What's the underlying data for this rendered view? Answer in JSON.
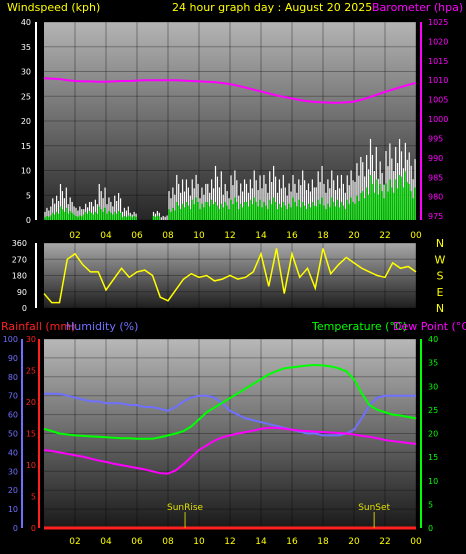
{
  "top": {
    "windspeed_label": "Windspeed (kph)",
    "title": "24 hour graph day : August 20 2025",
    "barometer_label": "Barometer (hpa)"
  },
  "bottom": {
    "rainfall_label": "Rainfall (mm)",
    "humidity_label": "Humidity (%)",
    "temperature_label": "Temperature (°C)",
    "dewpoint_label": "Dew Point (°C)",
    "sunrise_label": "SunRise",
    "sunset_label": "SunSet"
  },
  "colors": {
    "wind_gust": "#ffffff",
    "wind_avg": "#00ff00",
    "barometer": "#ff00ff",
    "direction": "#ffff00",
    "rain": "#ff2020",
    "humidity": "#7070ff",
    "temperature": "#00ff00",
    "dewpoint": "#ff00ff",
    "sun": "#c8c800"
  },
  "chart_data": [
    {
      "type": "area",
      "name": "wind-baro",
      "hour_ticks": [
        "02",
        "04",
        "06",
        "08",
        "10",
        "12",
        "14",
        "16",
        "18",
        "20",
        "22",
        "00"
      ],
      "x": [
        0,
        0.5,
        1,
        1.5,
        2,
        2.5,
        3,
        3.5,
        4,
        4.5,
        5,
        5.5,
        6,
        6.5,
        7,
        7.5,
        8,
        8.5,
        9,
        9.5,
        10,
        10.5,
        11,
        11.5,
        12,
        12.5,
        13,
        13.5,
        14,
        14.5,
        15,
        15.5,
        16,
        16.5,
        17,
        17.5,
        18,
        18.5,
        19,
        19.5,
        20,
        20.5,
        21,
        21.5,
        22,
        22.5,
        23,
        23.5,
        24
      ],
      "left_axis": {
        "label": "Windspeed (kph)",
        "ylim": [
          0,
          40
        ],
        "ticks": [
          0,
          5,
          10,
          15,
          20,
          25,
          30,
          35,
          40
        ]
      },
      "right_axis": {
        "label": "Barometer (hpa)",
        "ylim": [
          974,
          1025
        ],
        "ticks": [
          975,
          980,
          985,
          990,
          995,
          1000,
          1005,
          1010,
          1015,
          1020,
          1025
        ]
      },
      "series": [
        {
          "values": [
            3,
            6,
            8,
            5,
            3,
            4,
            5,
            8,
            5,
            6,
            3,
            2,
            0,
            0,
            2,
            1,
            8,
            10,
            9,
            10,
            8,
            10,
            12,
            8,
            11,
            9,
            10,
            11,
            10,
            12,
            10,
            9,
            10,
            11,
            9,
            12,
            10,
            11,
            10,
            11,
            14,
            16,
            18,
            13,
            17,
            18,
            19,
            15,
            10
          ]
        },
        {
          "values": [
            1,
            2,
            3,
            2,
            1,
            2,
            2,
            3,
            2,
            2,
            1,
            1,
            0,
            0,
            1,
            0,
            3,
            4,
            4,
            5,
            4,
            5,
            4,
            4,
            5,
            4,
            5,
            5,
            4,
            5,
            4,
            4,
            5,
            4,
            4,
            5,
            4,
            5,
            4,
            5,
            6,
            8,
            10,
            8,
            9,
            10,
            12,
            8,
            5
          ]
        },
        {
          "values": [
            1010.5,
            1010.4,
            1010.3,
            1010.0,
            1009.8,
            1009.7,
            1009.7,
            1009.6,
            1009.6,
            1009.7,
            1009.8,
            1009.8,
            1009.9,
            1010.0,
            1010.0,
            1010.0,
            1010.0,
            1010.0,
            1009.9,
            1009.8,
            1009.7,
            1009.6,
            1009.5,
            1009.3,
            1009.0,
            1008.6,
            1008.1,
            1007.6,
            1007.1,
            1006.6,
            1006.1,
            1005.7,
            1005.3,
            1004.9,
            1004.6,
            1004.4,
            1004.3,
            1004.2,
            1004.2,
            1004.3,
            1004.5,
            1005.0,
            1005.6,
            1006.3,
            1007.0,
            1007.6,
            1008.2,
            1008.8,
            1009.3
          ]
        }
      ]
    },
    {
      "type": "scatter",
      "name": "wind-direction",
      "x": [
        0,
        0.5,
        1,
        1.5,
        2,
        2.5,
        3,
        3.5,
        4,
        4.5,
        5,
        5.5,
        6,
        6.5,
        7,
        7.5,
        8,
        8.5,
        9,
        9.5,
        10,
        10.5,
        11,
        11.5,
        12,
        12.5,
        13,
        13.5,
        14,
        14.5,
        15,
        15.5,
        16,
        16.5,
        17,
        17.5,
        18,
        18.5,
        19,
        19.5,
        20,
        20.5,
        21,
        21.5,
        22,
        22.5,
        23,
        23.5,
        24
      ],
      "ylim": [
        0,
        360
      ],
      "ticks": [
        0,
        90,
        180,
        270,
        360
      ],
      "compass": [
        "N",
        "W",
        "S",
        "E",
        "N"
      ],
      "series": [
        {
          "values": [
            80,
            30,
            30,
            270,
            300,
            240,
            200,
            200,
            100,
            160,
            220,
            170,
            200,
            210,
            180,
            60,
            40,
            100,
            160,
            190,
            170,
            180,
            150,
            160,
            180,
            160,
            170,
            200,
            300,
            120,
            330,
            80,
            300,
            170,
            220,
            110,
            330,
            190,
            240,
            280,
            250,
            220,
            200,
            180,
            170,
            250,
            220,
            230,
            200
          ]
        }
      ]
    },
    {
      "type": "line",
      "name": "temp-hum",
      "hour_ticks": [
        "02",
        "04",
        "06",
        "08",
        "10",
        "12",
        "14",
        "16",
        "18",
        "20",
        "22",
        "00"
      ],
      "x": [
        0,
        0.5,
        1,
        1.5,
        2,
        2.5,
        3,
        3.5,
        4,
        4.5,
        5,
        5.5,
        6,
        6.5,
        7,
        7.5,
        8,
        8.5,
        9,
        9.5,
        10,
        10.5,
        11,
        11.5,
        12,
        12.5,
        13,
        13.5,
        14,
        14.5,
        15,
        15.5,
        16,
        16.5,
        17,
        17.5,
        18,
        18.5,
        19,
        19.5,
        20,
        20.5,
        21,
        21.5,
        22,
        22.5,
        23,
        23.5,
        24
      ],
      "left_axis_rain": {
        "label": "Rainfall (mm)",
        "ylim": [
          0,
          30
        ],
        "ticks": [
          0,
          5,
          10,
          15,
          20,
          25,
          30
        ]
      },
      "left_axis_humidity": {
        "label": "Humidity (%)",
        "ylim": [
          0,
          100
        ],
        "ticks": [
          0,
          10,
          20,
          30,
          40,
          50,
          60,
          70,
          80,
          90,
          100
        ]
      },
      "right_axis": {
        "label": "Temperature (°C)",
        "label2": "Dew Point (°C)",
        "ylim": [
          0,
          40
        ],
        "ticks": [
          0,
          5,
          10,
          15,
          20,
          25,
          30,
          35,
          40
        ]
      },
      "sunrise_hour": 9.1,
      "sunset_hour": 21.3,
      "series": [
        {
          "values": [
            0,
            0,
            0,
            0,
            0,
            0,
            0,
            0,
            0,
            0,
            0,
            0,
            0,
            0,
            0,
            0,
            0,
            0,
            0,
            0,
            0,
            0,
            0,
            0,
            0,
            0,
            0,
            0,
            0,
            0,
            0,
            0,
            0,
            0,
            0,
            0,
            0,
            0,
            0,
            0,
            0,
            0,
            0,
            0,
            0,
            0,
            0,
            0,
            0
          ]
        },
        {
          "values": [
            71,
            71,
            71,
            70,
            69,
            68,
            67,
            67,
            66,
            66,
            66,
            65,
            65,
            64,
            64,
            63,
            62,
            64,
            67,
            69,
            70,
            70,
            69,
            66,
            62,
            60,
            58,
            57,
            56,
            55,
            54,
            53,
            52,
            51,
            50,
            50,
            49,
            49,
            49,
            50,
            52,
            58,
            65,
            69,
            70,
            70,
            70,
            70,
            70
          ]
        },
        {
          "values": [
            21,
            20.5,
            20,
            19.8,
            19.6,
            19.5,
            19.4,
            19.3,
            19.2,
            19.1,
            19.0,
            19.0,
            18.9,
            18.9,
            18.9,
            19.2,
            19.6,
            20,
            20.5,
            21.5,
            23,
            24.5,
            25.5,
            26.5,
            27.5,
            28.5,
            29.5,
            30.5,
            31.5,
            32.5,
            33.2,
            33.8,
            34,
            34.2,
            34.4,
            34.5,
            34.4,
            34.2,
            33.8,
            33.2,
            31.5,
            28.5,
            26,
            25,
            24.5,
            24,
            23.8,
            23.5,
            23.2
          ]
        },
        {
          "values": [
            16.5,
            16.3,
            16.0,
            15.7,
            15.4,
            15.1,
            14.7,
            14.3,
            14.0,
            13.6,
            13.3,
            13.0,
            12.7,
            12.4,
            12.0,
            11.6,
            11.5,
            12.2,
            13.5,
            15,
            16.5,
            17.5,
            18.5,
            19.2,
            19.6,
            20,
            20.3,
            20.6,
            21,
            21.2,
            21.2,
            21,
            20.8,
            20.6,
            20.5,
            20.4,
            20.3,
            20.2,
            20.1,
            20,
            19.8,
            19.5,
            19.3,
            19.0,
            18.6,
            18.4,
            18.2,
            18.0,
            17.8
          ]
        }
      ]
    }
  ]
}
